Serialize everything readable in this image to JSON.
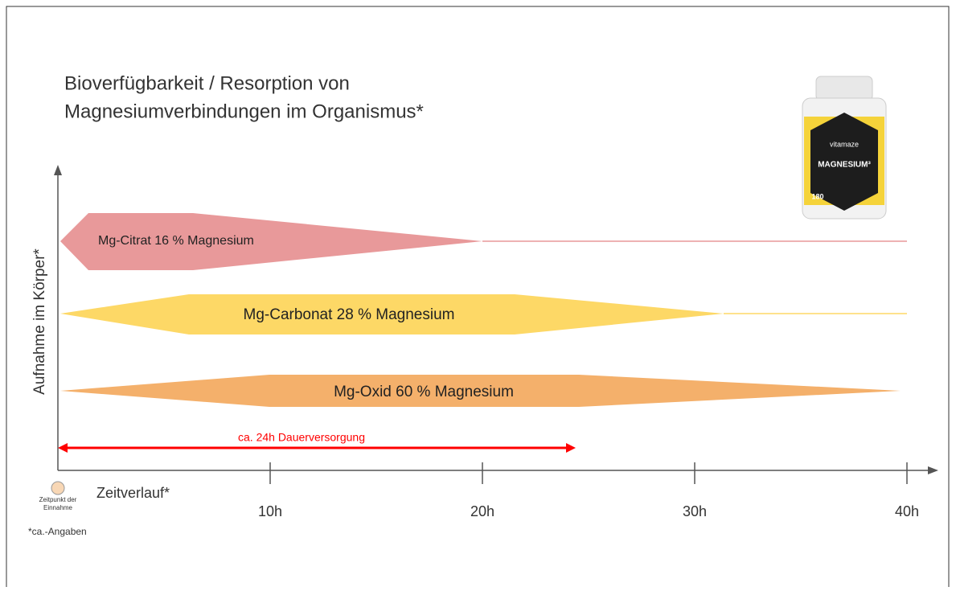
{
  "title": {
    "line1": "Bioverfügbarkeit / Resorption von",
    "line2": "Magnesiumverbindungen im Organismus*"
  },
  "y_axis_label": "Aufnahme im Körper*",
  "x_axis_label": "Zeitverlauf*",
  "x_ticks": [
    "10h",
    "20h",
    "30h",
    "40h"
  ],
  "origin_label": {
    "line1": "Zeitpunkt der",
    "line2": "Einnahme"
  },
  "bands": [
    {
      "label": "Mg-Citrat 16 % Magnesium"
    },
    {
      "label": "Mg-Carbonat 28 % Magnesium"
    },
    {
      "label": "Mg-Oxid 60 % Magnesium"
    }
  ],
  "duration_arrow": "ca. 24h Dauerversorgung",
  "footnote": "*ca.-Angaben",
  "product": {
    "brand": "vitamaze",
    "name": "MAGNESIUM³",
    "count": "180"
  }
}
